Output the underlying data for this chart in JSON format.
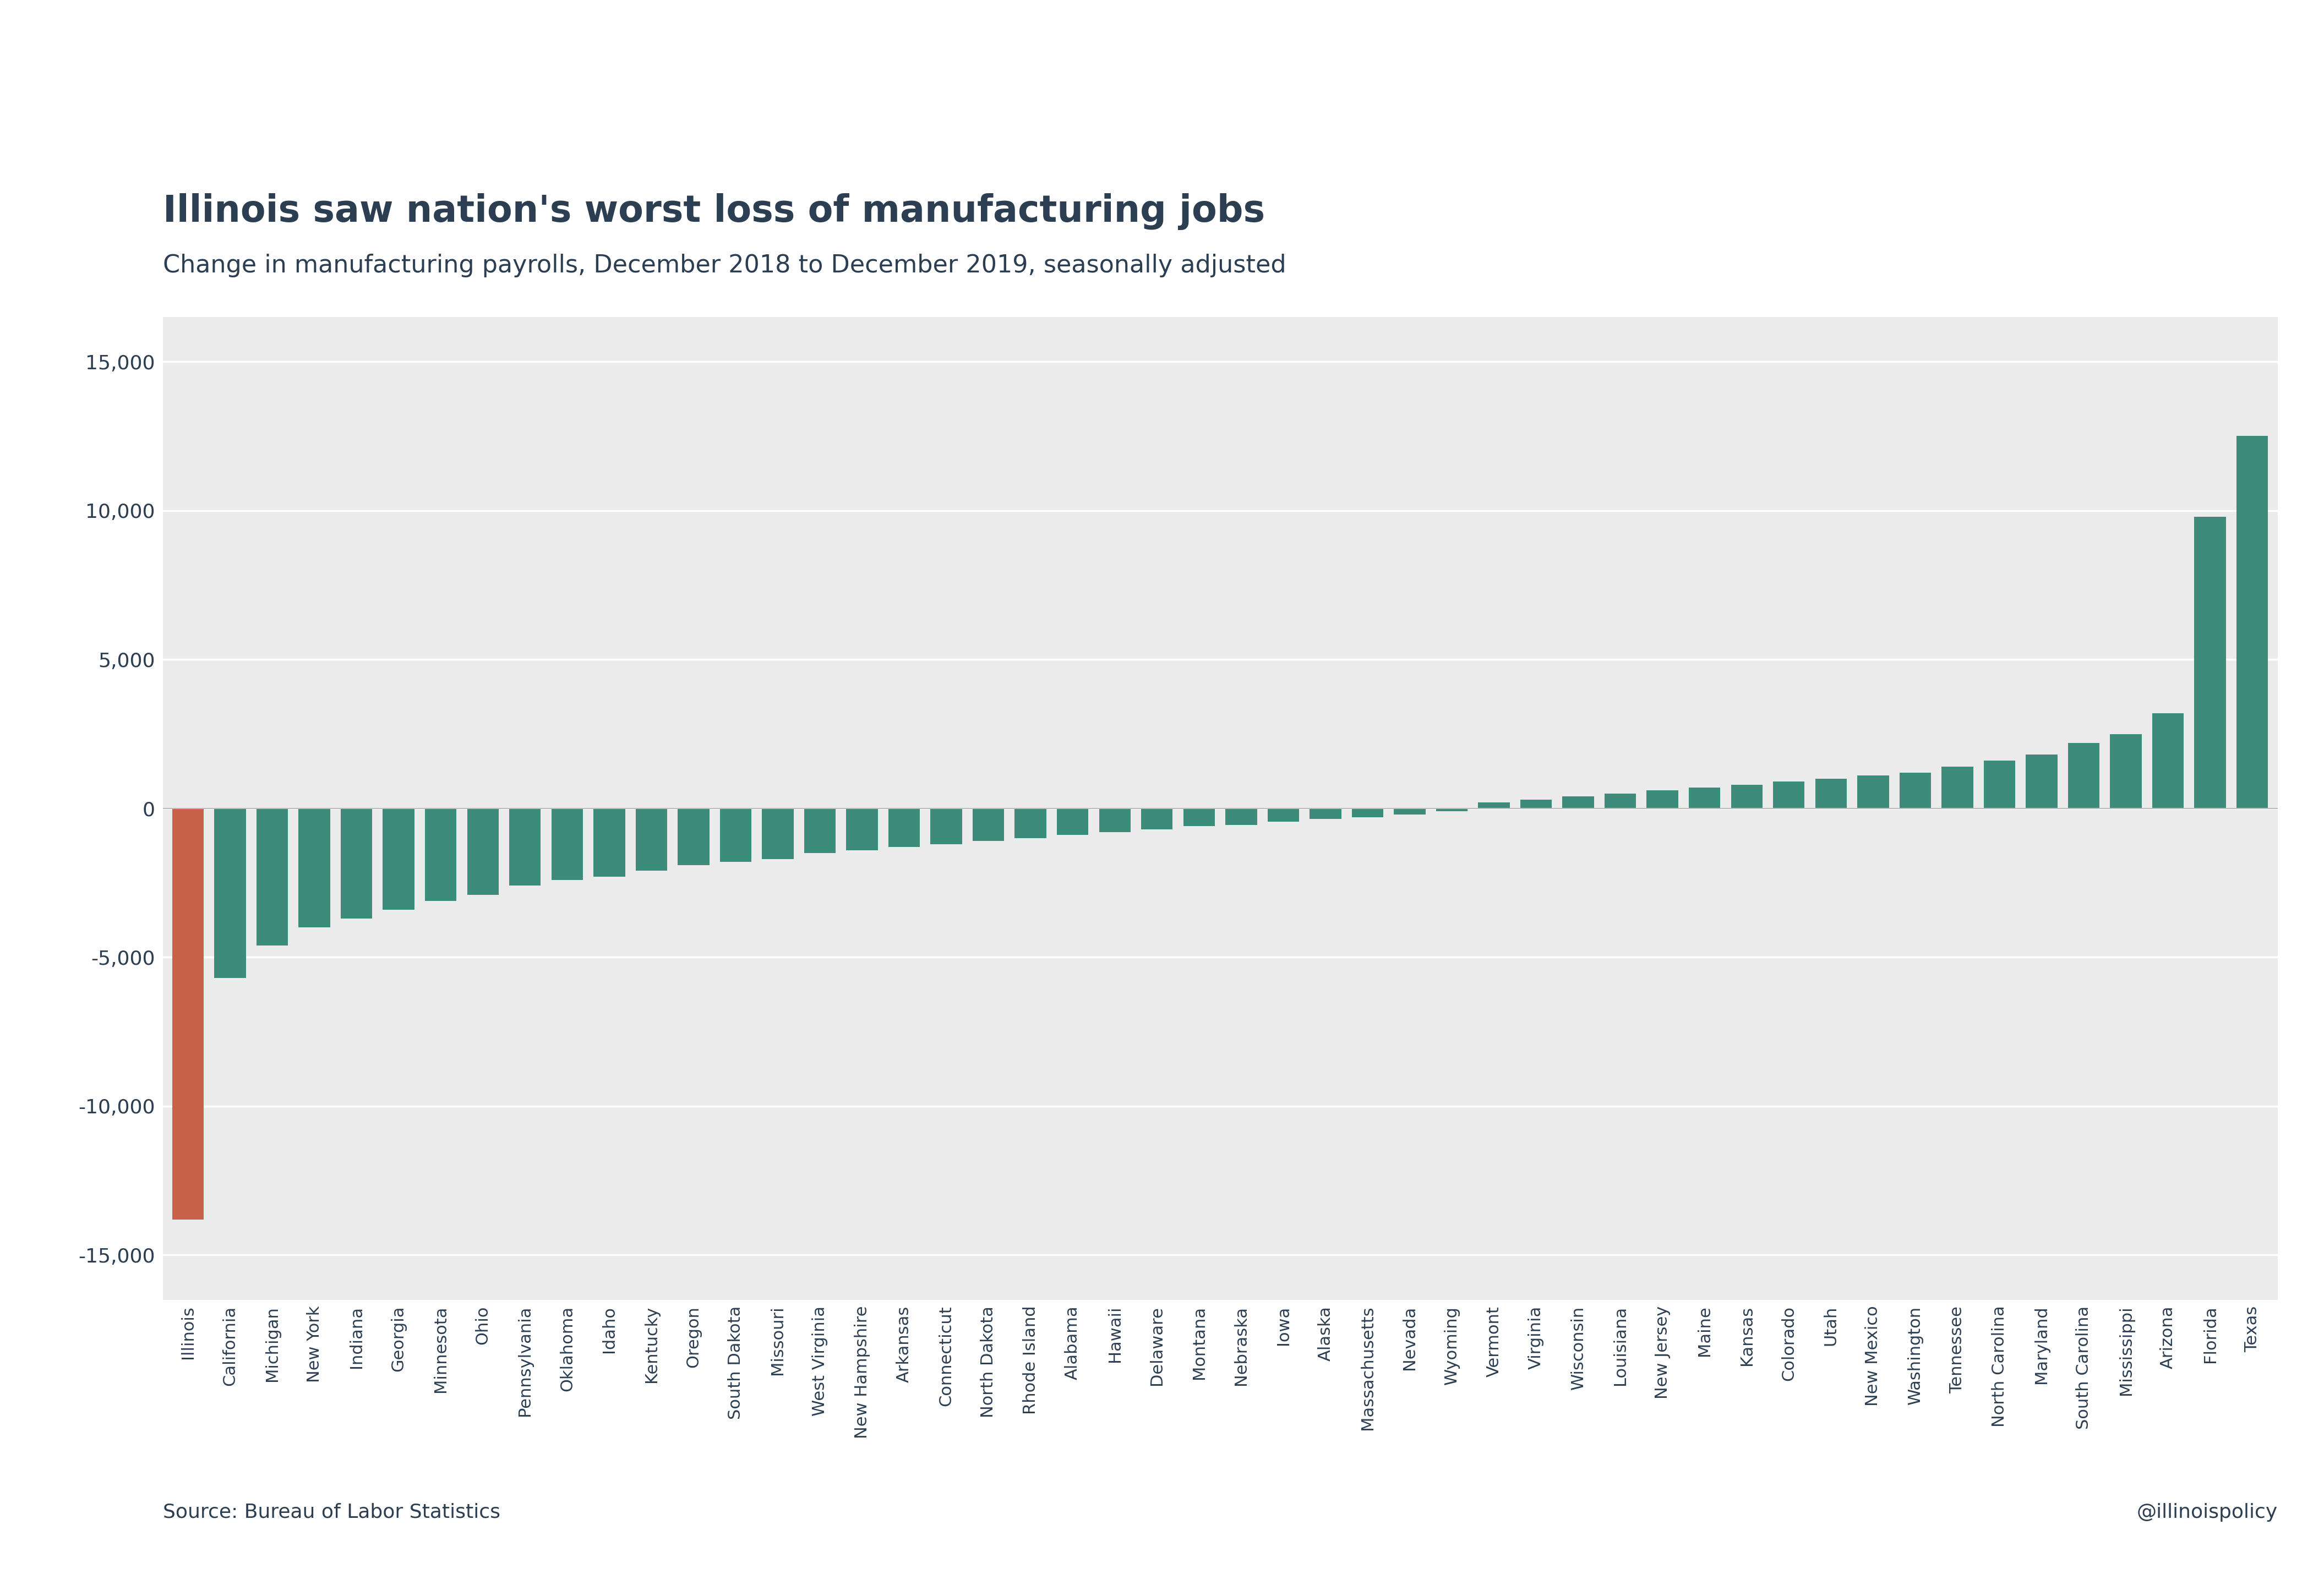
{
  "title": "Illinois saw nation's worst loss of manufacturing jobs",
  "subtitle": "Change in manufacturing payrolls, December 2018 to December 2019, seasonally adjusted",
  "source": "Source: Bureau of Labor Statistics",
  "handle": "@illinoispolicy",
  "categories": [
    "Illinois",
    "California",
    "Michigan",
    "New York",
    "Indiana",
    "Georgia",
    "Minnesota",
    "Ohio",
    "Pennsylvania",
    "Oklahoma",
    "Idaho",
    "Kentucky",
    "Oregon",
    "South Dakota",
    "Missouri",
    "West Virginia",
    "New Hampshire",
    "Arkansas",
    "Connecticut",
    "North Dakota",
    "Rhode Island",
    "Alabama",
    "Hawaii",
    "Delaware",
    "Montana",
    "Nebraska",
    "Iowa",
    "Alaska",
    "Massachusetts",
    "Nevada",
    "Wyoming",
    "Vermont",
    "Virginia",
    "Wisconsin",
    "Louisiana",
    "New Jersey",
    "Maine",
    "Kansas",
    "Colorado",
    "Utah",
    "New Mexico",
    "Washington",
    "Tennessee",
    "North Carolina",
    "Maryland",
    "South Carolina",
    "Mississippi",
    "Arizona",
    "Florida",
    "Texas"
  ],
  "values": [
    -13800,
    -5700,
    -4600,
    -4000,
    -3700,
    -3400,
    -3100,
    -2900,
    -2600,
    -2400,
    -2300,
    -2100,
    -1900,
    -1800,
    -1700,
    -1500,
    -1400,
    -1300,
    -1200,
    -1100,
    -1000,
    -900,
    -800,
    -700,
    -600,
    -550,
    -450,
    -350,
    -300,
    -200,
    -100,
    200,
    300,
    400,
    500,
    600,
    700,
    800,
    900,
    1000,
    1100,
    1200,
    1400,
    1600,
    1800,
    2200,
    2500,
    3200,
    9800,
    12500
  ],
  "illinois_color": "#C8614A",
  "teal_color": "#3D8B7A",
  "plot_bg_color": "#EBEBEB",
  "fig_bg_color": "#FFFFFF",
  "title_color": "#2C3E52",
  "grid_color": "#FFFFFF",
  "zero_line_color": "#BBBBBB",
  "yticks": [
    -15000,
    -10000,
    -5000,
    0,
    5000,
    10000,
    15000
  ],
  "ylim_min": -16500,
  "ylim_max": 16500,
  "title_fontsize": 48,
  "subtitle_fontsize": 32,
  "tick_fontsize": 26,
  "xlabel_fontsize": 22,
  "footer_fontsize": 26,
  "bar_width": 0.75
}
